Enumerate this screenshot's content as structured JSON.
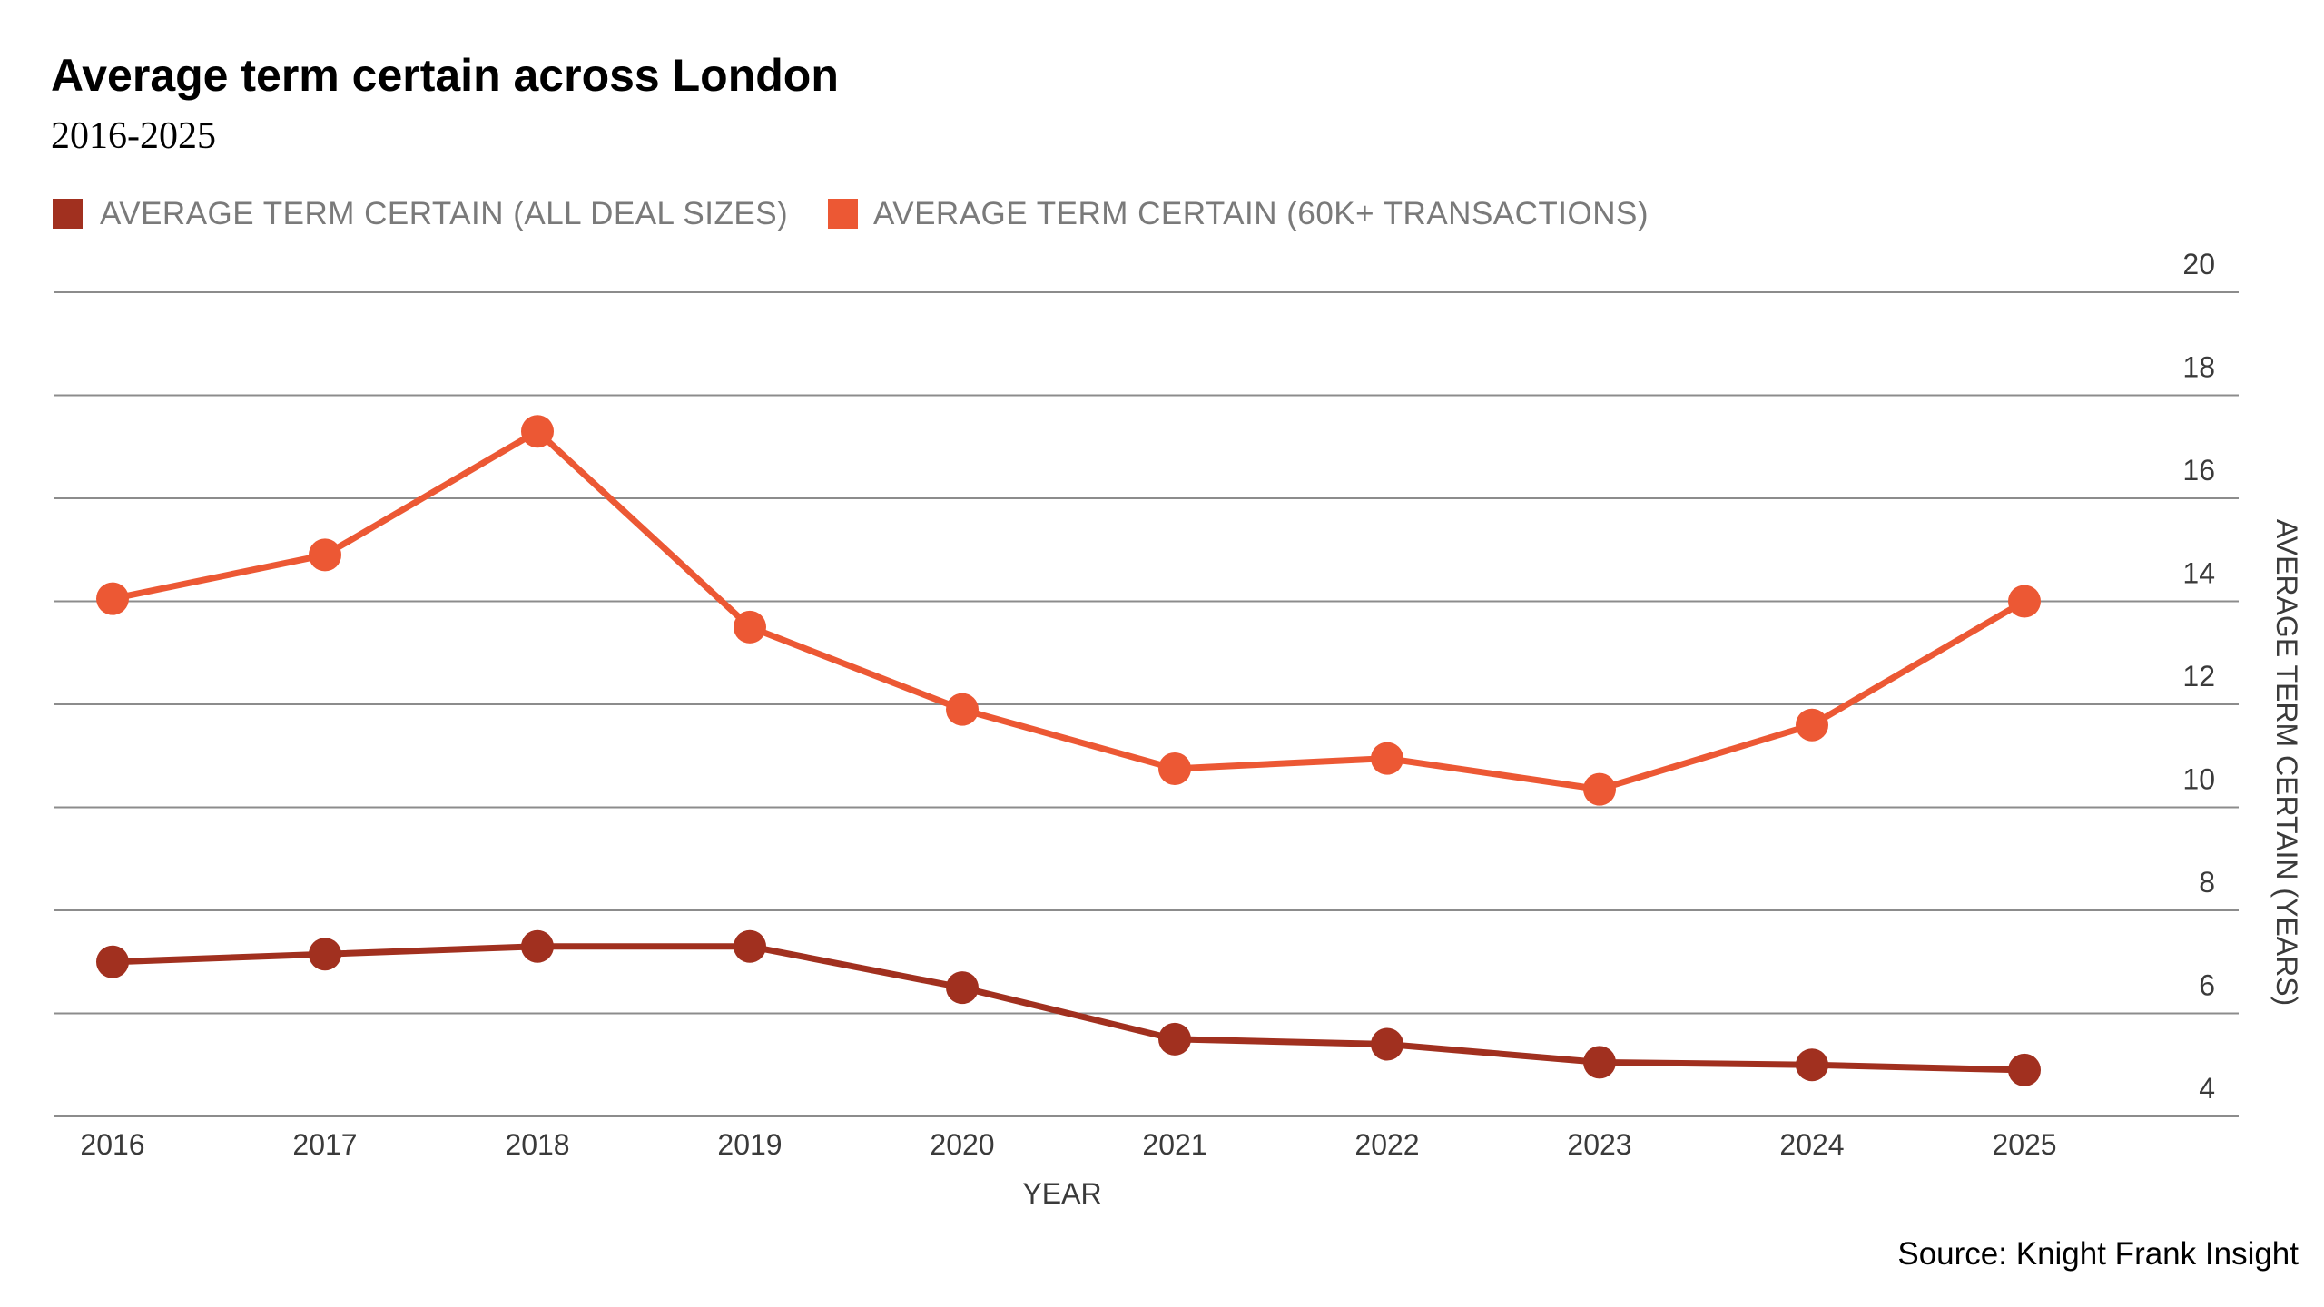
{
  "chart_data": {
    "type": "line",
    "title": "Average term certain across London",
    "subtitle": "2016-2025",
    "xlabel": "YEAR",
    "ylabel": "AVERAGE TERM CERTAIN (YEARS)",
    "source": "Source: Knight Frank Insight",
    "categories": [
      "2016",
      "2017",
      "2018",
      "2019",
      "2020",
      "2021",
      "2022",
      "2023",
      "2024",
      "2025"
    ],
    "ylim": [
      4,
      20
    ],
    "yticks": [
      4,
      6,
      8,
      10,
      12,
      14,
      16,
      18,
      20
    ],
    "y_axis_side": "right",
    "grid": true,
    "legend_position": "top-left",
    "series": [
      {
        "name": "AVERAGE TERM CERTAIN (ALL DEAL SIZES)",
        "color": "#A1301F",
        "values": [
          7.0,
          7.15,
          7.3,
          7.3,
          6.5,
          5.5,
          5.4,
          5.05,
          5.0,
          4.9
        ]
      },
      {
        "name": "AVERAGE TERM CERTAIN (60K+ TRANSACTIONS)",
        "color": "#EC5834",
        "values": [
          14.05,
          14.9,
          17.3,
          13.5,
          11.9,
          10.75,
          10.95,
          10.35,
          11.6,
          14.0
        ]
      }
    ]
  }
}
